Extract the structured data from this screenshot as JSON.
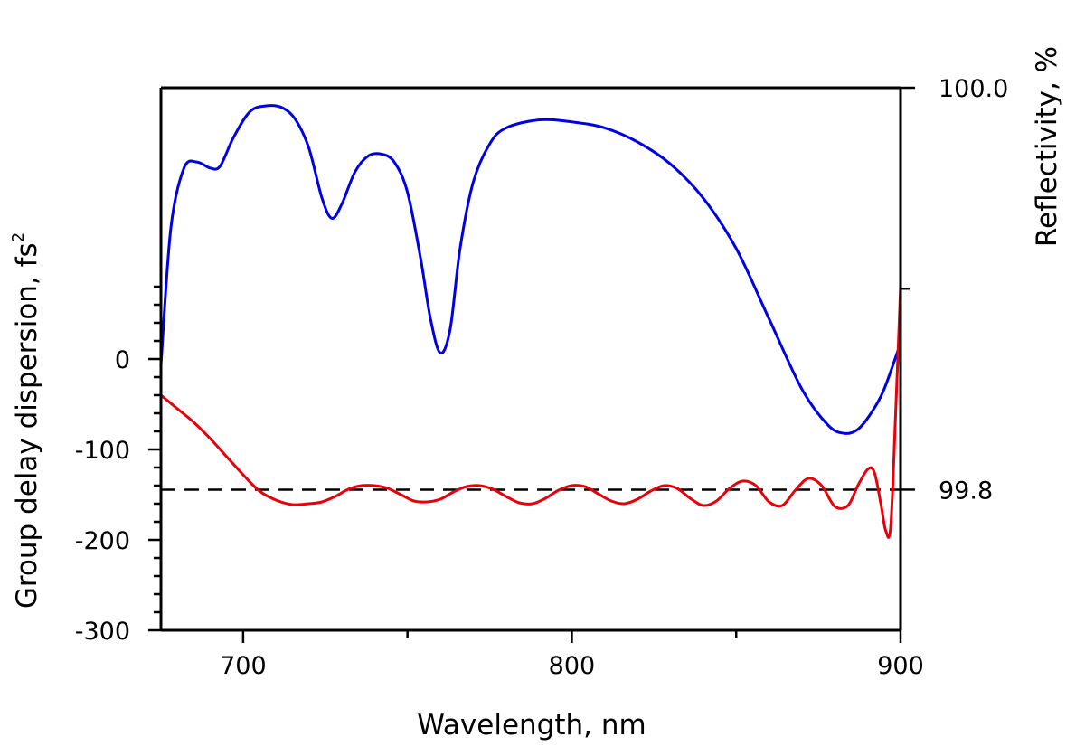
{
  "chart_data": {
    "type": "line",
    "xlabel": "Wavelength, nm",
    "ylabel_left": "Group delay dispersion, fs",
    "ylabel_left_superscript": "2",
    "ylabel_right": "Reflectivity, %",
    "xlim": [
      675,
      900
    ],
    "ylim_left": [
      -300,
      300
    ],
    "ylim_right": [
      99.73,
      100.0
    ],
    "x_ticks": [
      700,
      800,
      900
    ],
    "y_left_ticks": [
      0,
      -100,
      -200,
      -300
    ],
    "y_right_ticks": [
      "100.0",
      "99.8"
    ],
    "colors": {
      "gdd": "#e8000b",
      "reflectivity": "#0000e6",
      "reference": "#000000"
    },
    "reference_line": {
      "axis": "right",
      "value": 99.8,
      "style": "dashed"
    },
    "series": [
      {
        "id": "reflectivity",
        "axis": "right",
        "x": [
          675,
          678,
          682,
          686,
          690,
          693,
          697,
          702,
          707,
          712,
          716,
          720,
          724,
          727,
          730,
          734,
          738,
          742,
          746,
          750,
          754,
          757,
          760,
          763,
          766,
          770,
          775,
          780,
          790,
          800,
          810,
          820,
          830,
          840,
          850,
          860,
          870,
          878,
          883,
          887,
          891,
          895,
          900
        ],
        "values": [
          99.862,
          99.93,
          99.96,
          99.963,
          99.96,
          99.961,
          99.975,
          99.988,
          99.991,
          99.99,
          99.984,
          99.97,
          99.945,
          99.935,
          99.942,
          99.958,
          99.966,
          99.967,
          99.963,
          99.948,
          99.915,
          99.885,
          99.868,
          99.88,
          99.92,
          99.953,
          99.972,
          99.98,
          99.984,
          99.983,
          99.98,
          99.973,
          99.962,
          99.945,
          99.92,
          99.885,
          99.85,
          99.832,
          99.828,
          99.83,
          99.838,
          99.85,
          99.873
        ]
      },
      {
        "id": "gdd",
        "axis": "left",
        "x": [
          675,
          680,
          685,
          690,
          695,
          700,
          705,
          710,
          715,
          720,
          724,
          728,
          732,
          736,
          740,
          744,
          748,
          752,
          756,
          760,
          764,
          768,
          772,
          776,
          780,
          784,
          788,
          792,
          796,
          800,
          804,
          808,
          812,
          816,
          820,
          824,
          828,
          832,
          836,
          840,
          844,
          848,
          852,
          856,
          860,
          864,
          868,
          872,
          876,
          880,
          884,
          887,
          890,
          892,
          894,
          895.5,
          897,
          898.5,
          900
        ],
        "values": [
          -40,
          -55,
          -70,
          -88,
          -108,
          -128,
          -146,
          -156,
          -161,
          -160,
          -158,
          -152,
          -144,
          -140,
          -140,
          -143,
          -150,
          -157,
          -158,
          -155,
          -147,
          -141,
          -140,
          -144,
          -152,
          -159,
          -160,
          -154,
          -145,
          -140,
          -141,
          -149,
          -157,
          -160,
          -155,
          -146,
          -140,
          -143,
          -154,
          -162,
          -157,
          -143,
          -135,
          -140,
          -158,
          -162,
          -145,
          -132,
          -140,
          -163,
          -162,
          -140,
          -122,
          -125,
          -160,
          -190,
          -185,
          -60,
          80
        ]
      }
    ]
  }
}
